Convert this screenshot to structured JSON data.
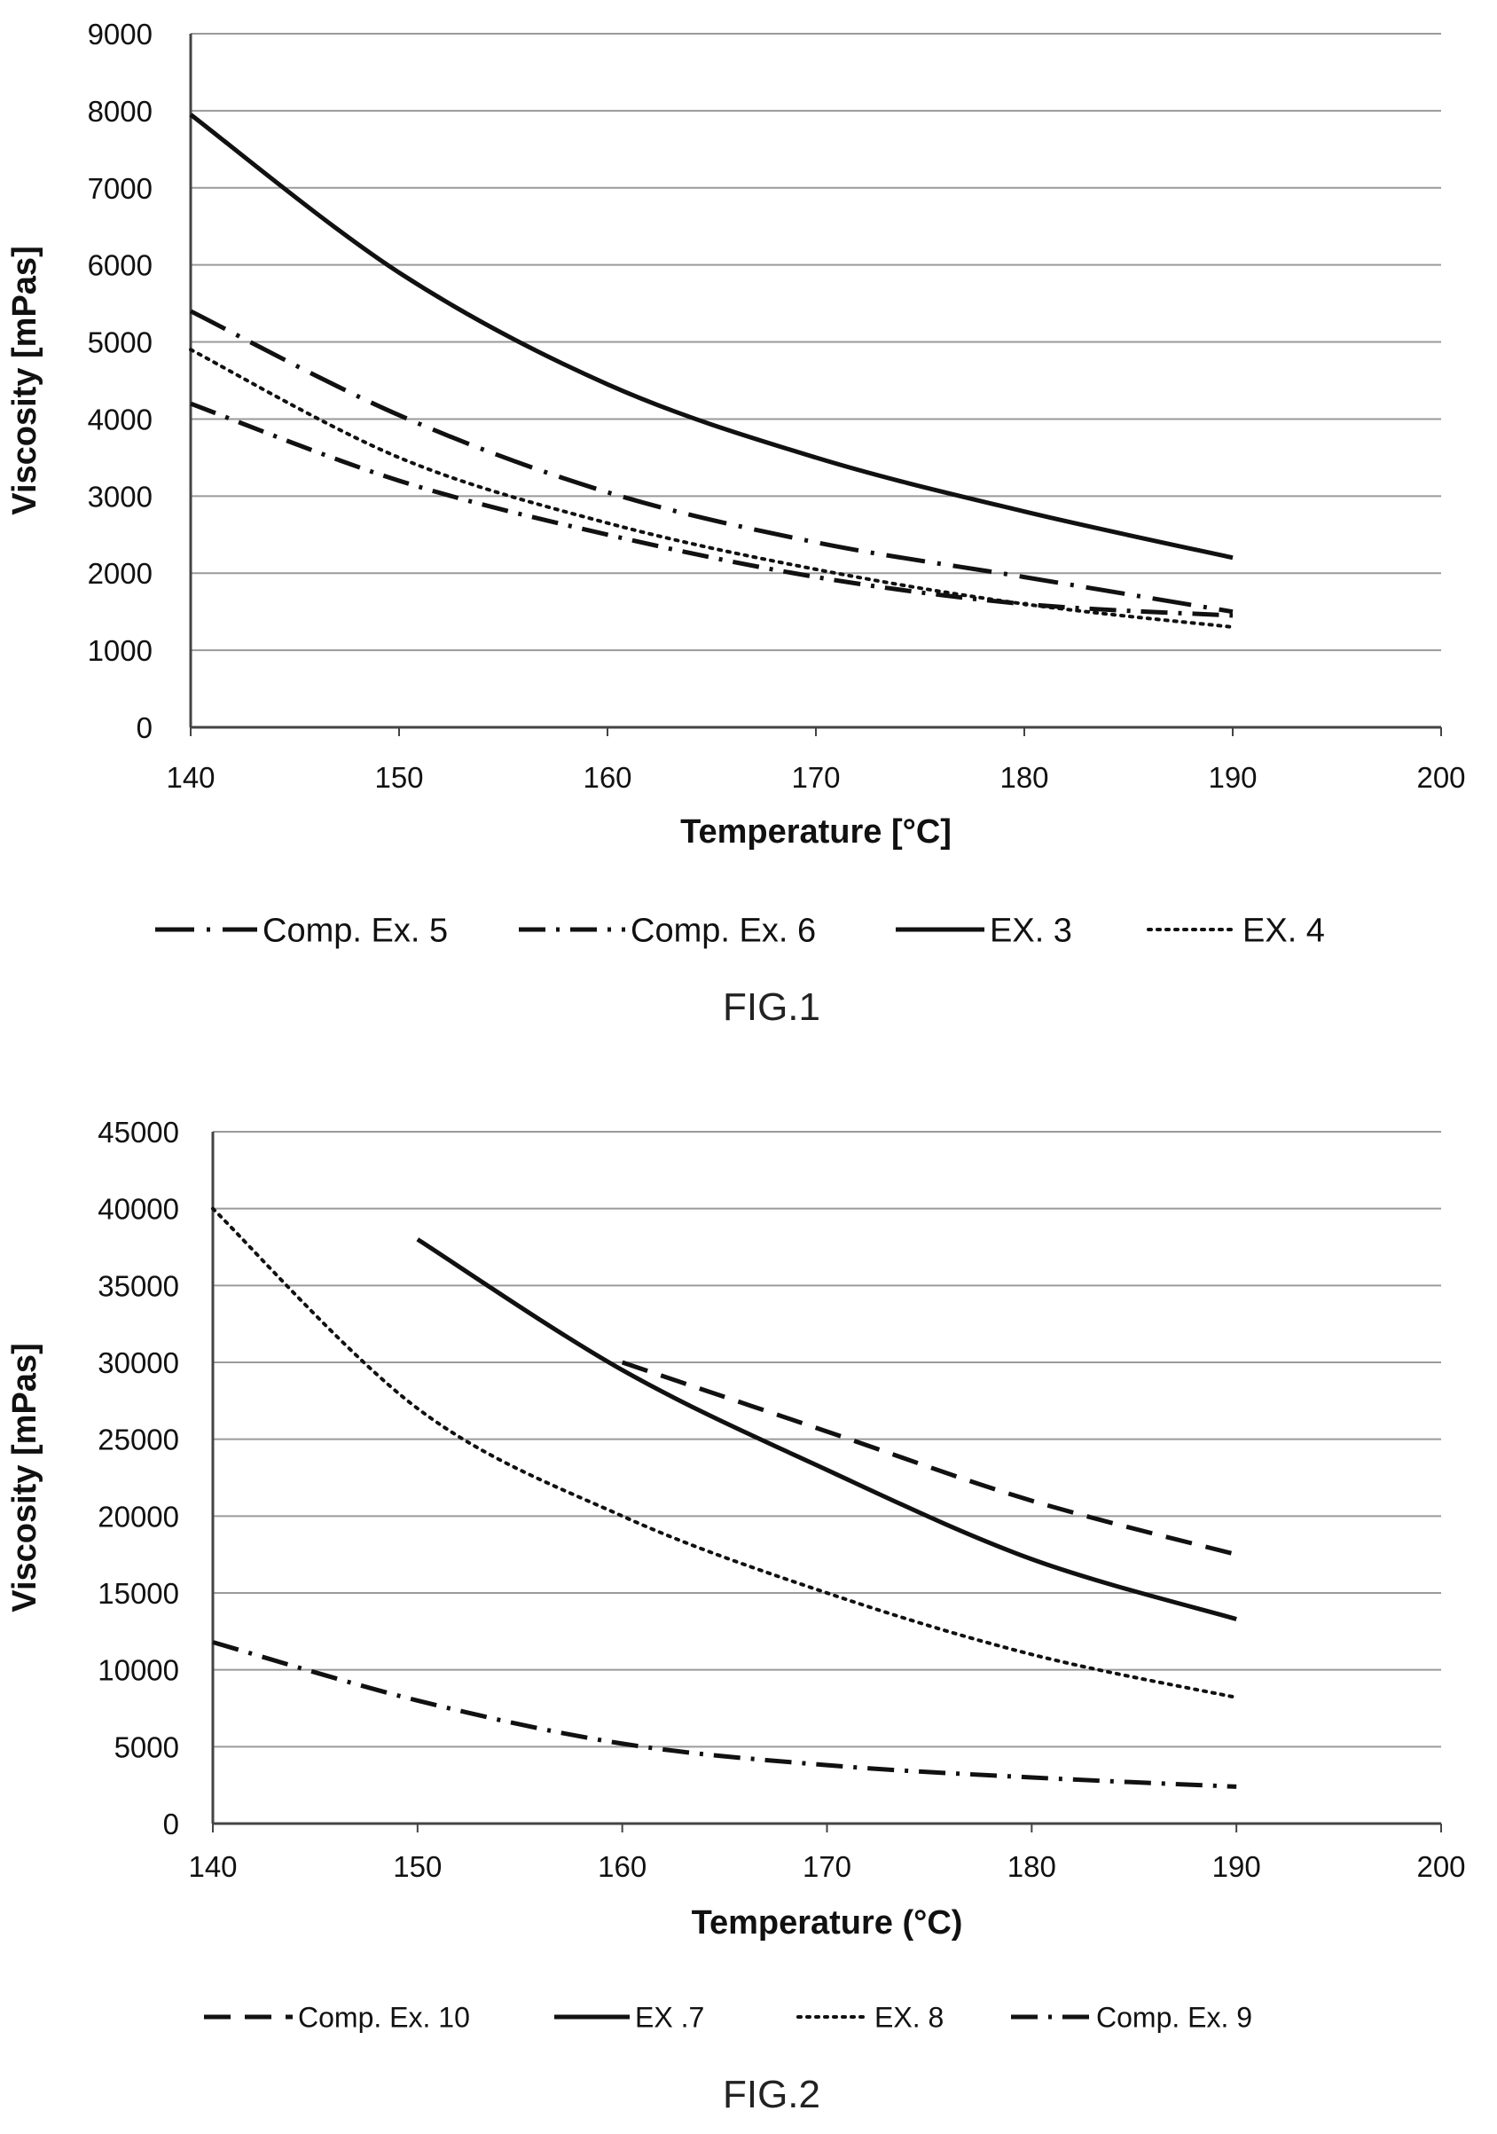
{
  "chart_data": [
    {
      "type": "line",
      "figure_label": "FIG.1",
      "title": "",
      "xlabel": "Temperature [°C]",
      "ylabel": "Viscosity [mPas]",
      "xlim": [
        140,
        200
      ],
      "ylim": [
        0,
        9000
      ],
      "x_ticks": [
        140,
        150,
        160,
        170,
        180,
        190,
        200
      ],
      "y_ticks": [
        0,
        1000,
        2000,
        3000,
        4000,
        5000,
        6000,
        7000,
        8000,
        9000
      ],
      "grid": "horizontal",
      "legend_position": "bottom",
      "series": [
        {
          "name": "Comp. Ex. 5",
          "style": "longdash-dot",
          "x": [
            140,
            150,
            160,
            170,
            180,
            190
          ],
          "y": [
            5400,
            4050,
            3050,
            2400,
            1950,
            1500
          ]
        },
        {
          "name": "Comp. Ex. 6",
          "style": "dash-dot",
          "x": [
            140,
            150,
            160,
            170,
            180,
            190
          ],
          "y": [
            4200,
            3200,
            2500,
            1950,
            1600,
            1450
          ]
        },
        {
          "name": "EX. 3",
          "style": "solid",
          "x": [
            140,
            150,
            160,
            170,
            180,
            190
          ],
          "y": [
            7950,
            5900,
            4450,
            3500,
            2800,
            2200
          ]
        },
        {
          "name": "EX. 4",
          "style": "dotted",
          "x": [
            140,
            150,
            160,
            170,
            180,
            190
          ],
          "y": [
            4900,
            3500,
            2650,
            2050,
            1600,
            1300
          ]
        }
      ]
    },
    {
      "type": "line",
      "figure_label": "FIG.2",
      "title": "",
      "xlabel": "Temperature (°C)",
      "ylabel": "Viscosity [mPas]",
      "xlim": [
        140,
        200
      ],
      "ylim": [
        0,
        45000
      ],
      "x_ticks": [
        140,
        150,
        160,
        170,
        180,
        190,
        200
      ],
      "y_ticks": [
        0,
        5000,
        10000,
        15000,
        20000,
        25000,
        30000,
        35000,
        40000,
        45000
      ],
      "grid": "horizontal",
      "legend_position": "bottom",
      "series": [
        {
          "name": "Comp. Ex. 10",
          "style": "dashed",
          "x": [
            160,
            170,
            180,
            190
          ],
          "y": [
            30000,
            25500,
            21000,
            17500
          ]
        },
        {
          "name": "EX .7",
          "style": "solid",
          "x": [
            150,
            160,
            170,
            180,
            190
          ],
          "y": [
            38000,
            29500,
            23000,
            17200,
            13300
          ]
        },
        {
          "name": "EX. 8",
          "style": "dotted",
          "x": [
            140,
            150,
            160,
            170,
            180,
            190
          ],
          "y": [
            40000,
            27000,
            20000,
            15000,
            11000,
            8200
          ]
        },
        {
          "name": "Comp. Ex. 9",
          "style": "dash-dot",
          "x": [
            140,
            150,
            160,
            170,
            180,
            190
          ],
          "y": [
            11800,
            8000,
            5200,
            3800,
            3000,
            2400
          ]
        }
      ]
    }
  ]
}
